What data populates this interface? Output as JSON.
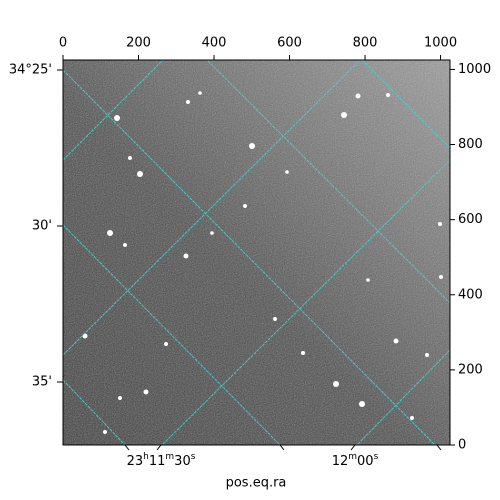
{
  "chart_data": {
    "type": "image",
    "xlabel": "pos.eq.ra",
    "xlim": [
      0,
      1025
    ],
    "ylim": [
      0,
      1025
    ],
    "xticks": [
      0,
      200,
      400,
      600,
      800,
      1000
    ],
    "yticks": [
      0,
      200,
      400,
      600,
      800,
      1000
    ],
    "dec_ticks": [
      "34°25'",
      "30'",
      "35'"
    ],
    "ra_ticks": [
      "23h11m30s",
      "12m00s"
    ]
  }
}
